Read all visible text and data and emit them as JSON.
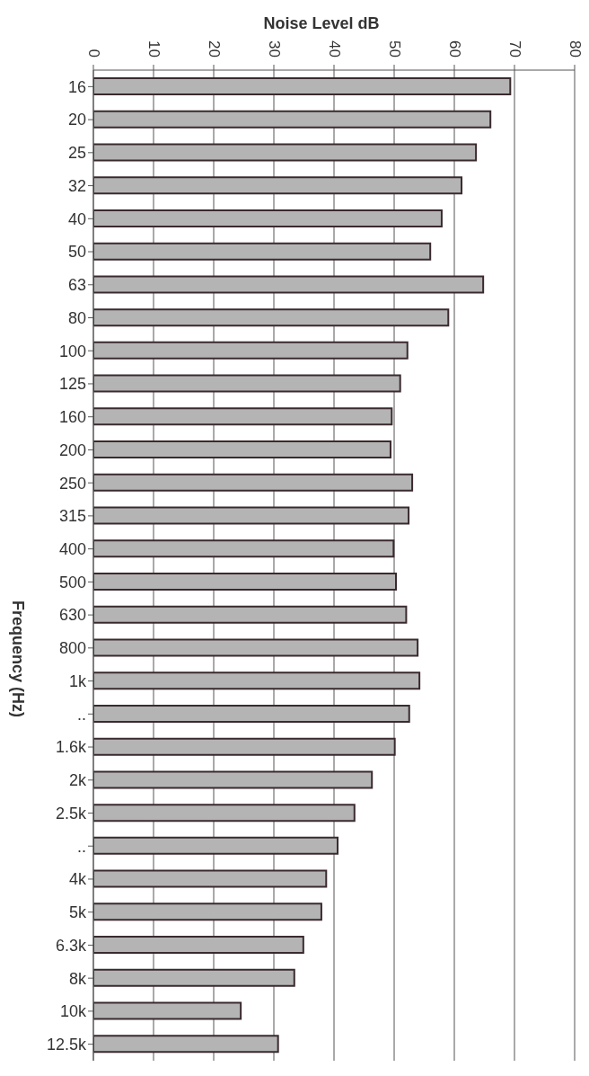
{
  "chart_data": {
    "type": "bar",
    "orientation": "horizontal",
    "xlabel": "Noise Level dB",
    "ylabel": "Frequency (Hz)",
    "categories": [
      "16",
      "20",
      "25",
      "32",
      "40",
      "50",
      "63",
      "80",
      "100",
      "125",
      "160",
      "200",
      "250",
      "315",
      "400",
      "500",
      "630",
      "800",
      "1k",
      "..",
      "1.6k",
      "2k",
      "2.5k",
      "..",
      "4k",
      "5k",
      "6.3k",
      "8k",
      "10k",
      "12.5k"
    ],
    "values": [
      69.3,
      66,
      63.6,
      61.2,
      57.9,
      56,
      64.8,
      59,
      52.2,
      51,
      49.6,
      49.4,
      53,
      52.4,
      49.9,
      50.3,
      52,
      53.9,
      54.2,
      52.5,
      50.1,
      46.3,
      43.4,
      40.6,
      38.7,
      37.9,
      34.9,
      33.4,
      24.5,
      30.7
    ],
    "color": "#b4b4b4",
    "xlim": [
      0,
      80
    ],
    "xticks": [
      0,
      10,
      20,
      30,
      40,
      50,
      60,
      70,
      80
    ],
    "grid": "x"
  }
}
